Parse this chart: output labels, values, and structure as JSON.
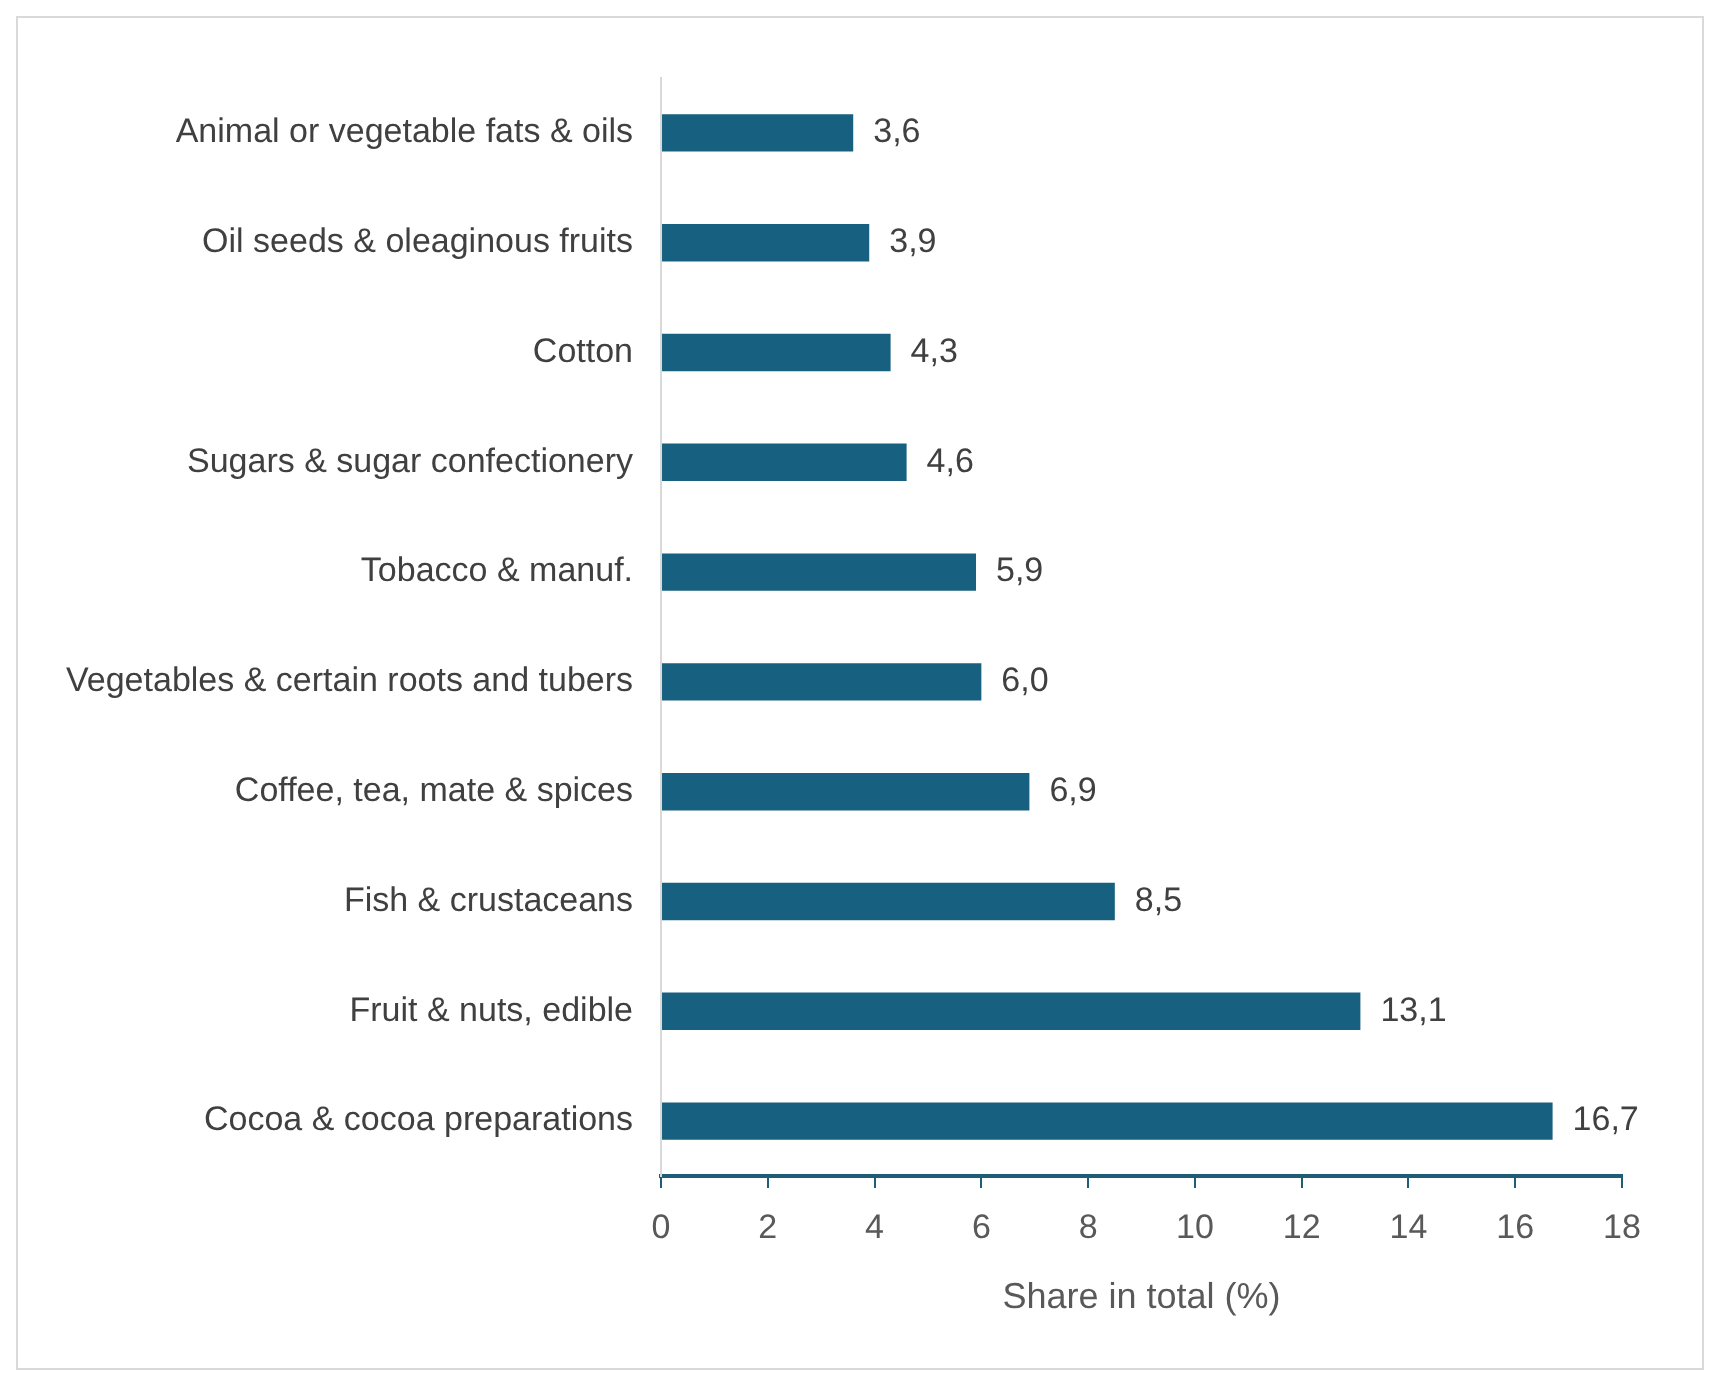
{
  "chart_data": {
    "type": "bar",
    "orientation": "horizontal",
    "xlabel": "Share in total (%)",
    "categories": [
      "Animal or vegetable fats & oils",
      "Oil seeds & oleaginous fruits",
      "Cotton",
      "Sugars & sugar confectionery",
      "Tobacco & manuf.",
      "Vegetables & certain roots and tubers",
      "Coffee, tea, mate & spices",
      "Fish & crustaceans",
      "Fruit & nuts, edible",
      "Cocoa & cocoa preparations"
    ],
    "values": [
      3.6,
      3.9,
      4.3,
      4.6,
      5.9,
      6.0,
      6.9,
      8.5,
      13.1,
      16.7
    ],
    "value_labels": [
      "3,6",
      "3,9",
      "4,3",
      "4,6",
      "5,9",
      "6,0",
      "6,9",
      "8,5",
      "13,1",
      "16,7"
    ],
    "color": "#18607f",
    "xlim": [
      0,
      18
    ],
    "xticks": [
      0,
      2,
      4,
      6,
      8,
      10,
      12,
      14,
      16,
      18
    ],
    "grid": false,
    "legend": false
  }
}
